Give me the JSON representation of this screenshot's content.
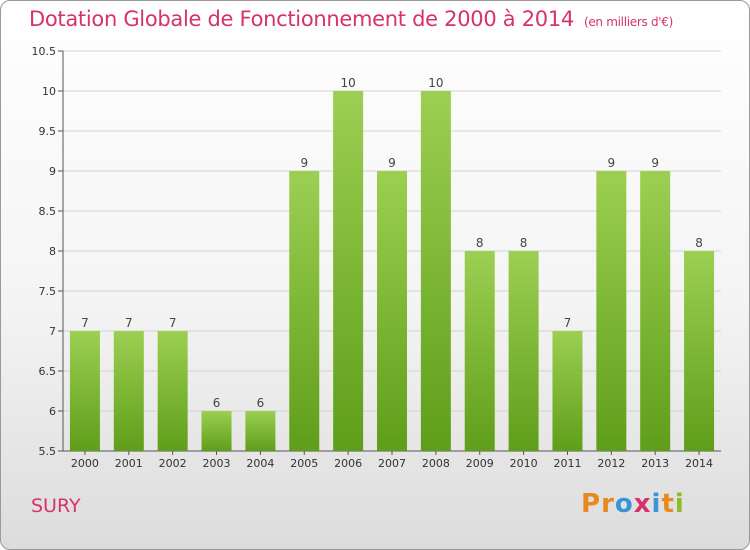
{
  "title": "Dotation Globale de Fonctionnement de 2000 à 2014",
  "subtitle": "(en milliers d'€)",
  "commune": "SURY",
  "logo_text": "Proxiti",
  "colors": {
    "accent": "#d6336c",
    "bar_light": "#9ccf52",
    "bar_dark": "#5f9e1a",
    "logo_letters": [
      "#e8891f",
      "#e8891f",
      "#3a95d6",
      "#d6336c",
      "#3a95d6",
      "#e8891f",
      "#8bbd2a"
    ]
  },
  "chart_data": {
    "type": "bar",
    "title": "Dotation Globale de Fonctionnement de 2000 à 2014",
    "xlabel": "",
    "ylabel": "",
    "categories": [
      "2000",
      "2001",
      "2002",
      "2003",
      "2004",
      "2005",
      "2006",
      "2007",
      "2008",
      "2009",
      "2010",
      "2011",
      "2012",
      "2013",
      "2014"
    ],
    "values": [
      7,
      7,
      7,
      6,
      6,
      9,
      10,
      9,
      10,
      8,
      8,
      7,
      9,
      9,
      8
    ],
    "ylim": [
      5.5,
      10.5
    ],
    "yticks": [
      "5.5",
      "6",
      "6.5",
      "7",
      "7.5",
      "8",
      "8.5",
      "9",
      "9.5",
      "10",
      "10.5"
    ],
    "grid": true
  }
}
